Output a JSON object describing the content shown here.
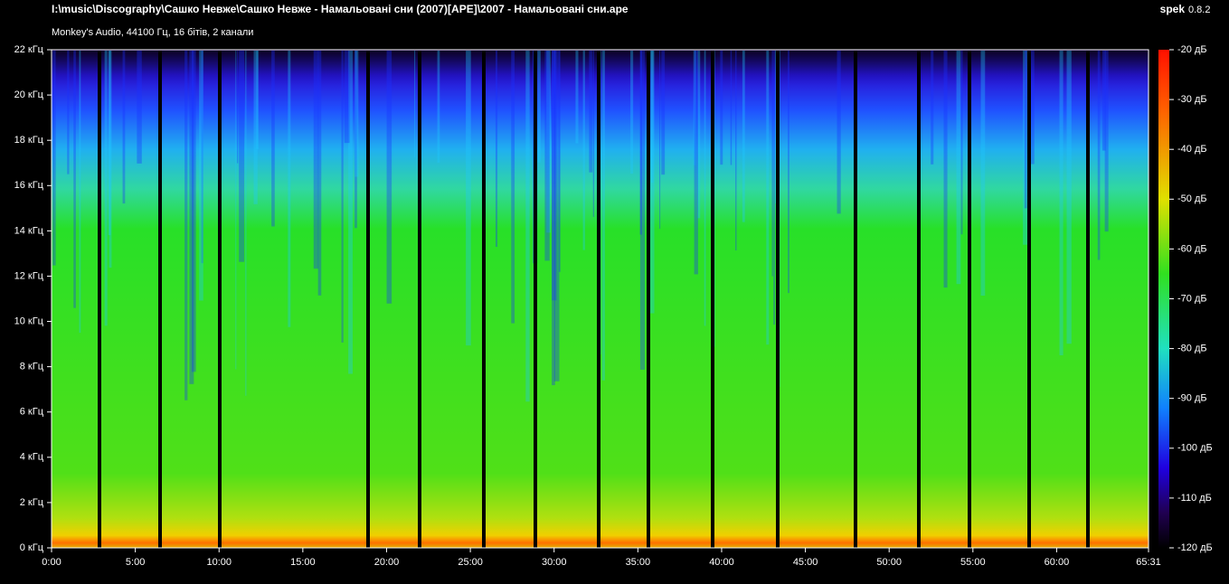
{
  "header": {
    "path": "I:\\music\\Discography\\Сашко Невже\\Сашко Невже - Намальовані сни (2007)[APE]\\2007 - Намальовані сни.ape",
    "app": "spek",
    "version": "0.8.2",
    "info": "Monkey's Audio, 44100 Гц, 16 бітів, 2 канали"
  },
  "frequency_axis": {
    "ticks": [
      "22 кГц",
      "20 кГц",
      "18 кГц",
      "16 кГц",
      "14 кГц",
      "12 кГц",
      "10 кГц",
      "8 кГц",
      "6 кГц",
      "4 кГц",
      "2 кГц",
      "0 кГц"
    ]
  },
  "time_axis": {
    "ticks": [
      "0:00",
      "5:00",
      "10:00",
      "15:00",
      "20:00",
      "25:00",
      "30:00",
      "35:00",
      "40:00",
      "45:00",
      "50:00",
      "55:00",
      "60:00",
      "65:31"
    ]
  },
  "level_scale": {
    "ticks": [
      "-20 дБ",
      "-30 дБ",
      "-40 дБ",
      "-50 дБ",
      "-60 дБ",
      "-70 дБ",
      "-80 дБ",
      "-90 дБ",
      "-100 дБ",
      "-110 дБ",
      "-120 дБ"
    ]
  }
}
